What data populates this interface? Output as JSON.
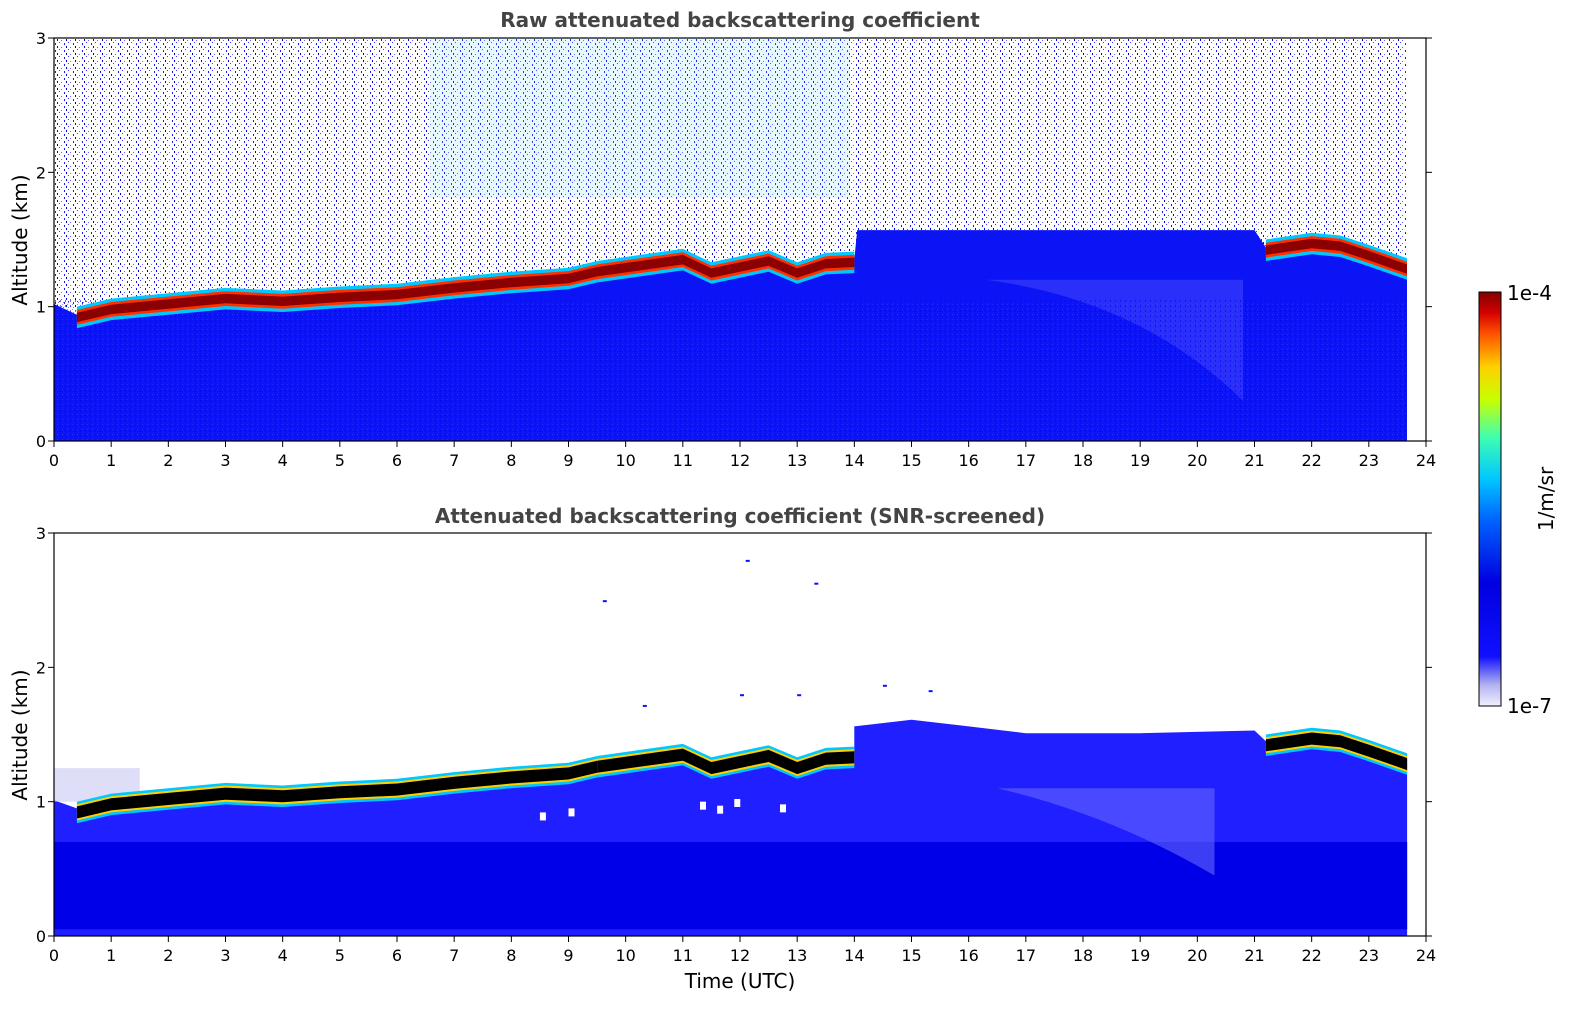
{
  "colors": {
    "background": "#ffffff",
    "axis": "#000000",
    "title_text": "#444444",
    "bg_low": "#0a14f5",
    "layer_core": "#8b0000",
    "screened_core": "#000000",
    "colormap": [
      "#ffffff",
      "#b4b4f0",
      "#1010ff",
      "#0000d8",
      "#0064ff",
      "#00c8ff",
      "#40ffb0",
      "#c8ff00",
      "#ffd000",
      "#ff5000",
      "#d40000",
      "#800000"
    ]
  },
  "chart_data": [
    {
      "type": "heatmap",
      "title": "Raw attenuated backscattering coefficient",
      "xlabel": "",
      "ylabel": "Altitude (km)",
      "xlim": [
        0,
        24
      ],
      "ylim": [
        0,
        3
      ],
      "x_ticks": [
        "0",
        "1",
        "2",
        "3",
        "4",
        "5",
        "6",
        "7",
        "8",
        "9",
        "10",
        "11",
        "12",
        "13",
        "14",
        "15",
        "16",
        "17",
        "18",
        "19",
        "20",
        "21",
        "22",
        "23",
        "24"
      ],
      "y_ticks": [
        "0",
        "1",
        "2",
        "3"
      ],
      "data_end_time": 23.67,
      "layer_top_km": [
        [
          0.4,
          0.92
        ],
        [
          1,
          0.98
        ],
        [
          2,
          1.02
        ],
        [
          3,
          1.06
        ],
        [
          4,
          1.04
        ],
        [
          5,
          1.07
        ],
        [
          6,
          1.09
        ],
        [
          7,
          1.14
        ],
        [
          8,
          1.18
        ],
        [
          9,
          1.21
        ],
        [
          9.5,
          1.26
        ],
        [
          10.5,
          1.32
        ],
        [
          11,
          1.35
        ],
        [
          11.5,
          1.25
        ],
        [
          12.5,
          1.34
        ],
        [
          13,
          1.25
        ],
        [
          13.5,
          1.32
        ],
        [
          14,
          1.33
        ]
      ],
      "upper_layer_km": [
        [
          21.2,
          1.42
        ],
        [
          22,
          1.47
        ],
        [
          22.5,
          1.45
        ],
        [
          23,
          1.38
        ],
        [
          23.67,
          1.28
        ]
      ]
    },
    {
      "type": "heatmap",
      "title": "Attenuated backscattering coefficient (SNR-screened)",
      "xlabel": "Time (UTC)",
      "ylabel": "Altitude (km)",
      "xlim": [
        0,
        24
      ],
      "ylim": [
        0,
        3
      ],
      "x_ticks": [
        "0",
        "1",
        "2",
        "3",
        "4",
        "5",
        "6",
        "7",
        "8",
        "9",
        "10",
        "11",
        "12",
        "13",
        "14",
        "15",
        "16",
        "17",
        "18",
        "19",
        "20",
        "21",
        "22",
        "23",
        "24"
      ],
      "y_ticks": [
        "0",
        "1",
        "2",
        "3"
      ],
      "data_end_time": 23.67,
      "mixed_layer_top_km": [
        [
          14,
          1.55
        ],
        [
          15,
          1.6
        ],
        [
          16,
          1.55
        ],
        [
          17,
          1.5
        ],
        [
          19,
          1.5
        ],
        [
          21,
          1.52
        ]
      ]
    }
  ],
  "colorbar": {
    "max_label": "1e-4",
    "min_label": "1e-7",
    "unit_label": "1/m/sr"
  }
}
